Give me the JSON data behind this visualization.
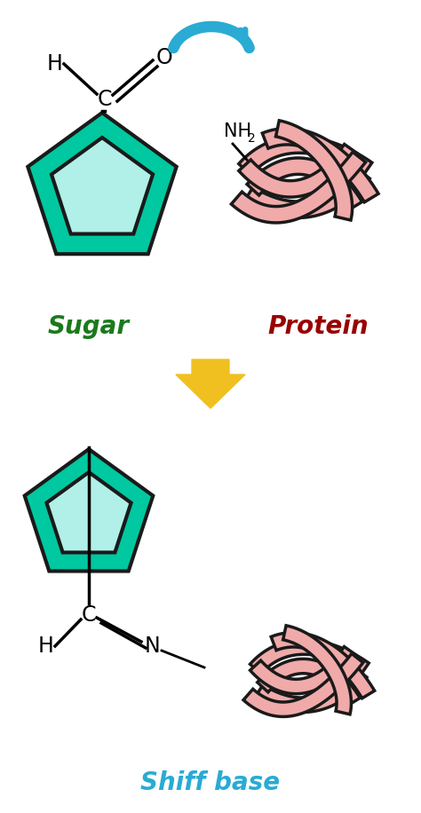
{
  "bg_color": "#ffffff",
  "sugar_color_outer": "#00C8A0",
  "sugar_color_inner": "#B0F0E8",
  "sugar_outline": "#1a1a1a",
  "protein_color": "#F0AAAA",
  "protein_outline": "#1a1a1a",
  "arrow_color_cyan": "#29ABD4",
  "arrow_color_yellow": "#F0C020",
  "text_sugar_color": "#1a7a1a",
  "text_protein_color": "#990000",
  "text_shiff_color": "#29ABD4",
  "label_sugar": "Sugar",
  "label_protein": "Protein",
  "label_shiff": "Shiff base",
  "sugar_label_fontsize": 20,
  "protein_label_fontsize": 20,
  "shiff_label_fontsize": 20
}
